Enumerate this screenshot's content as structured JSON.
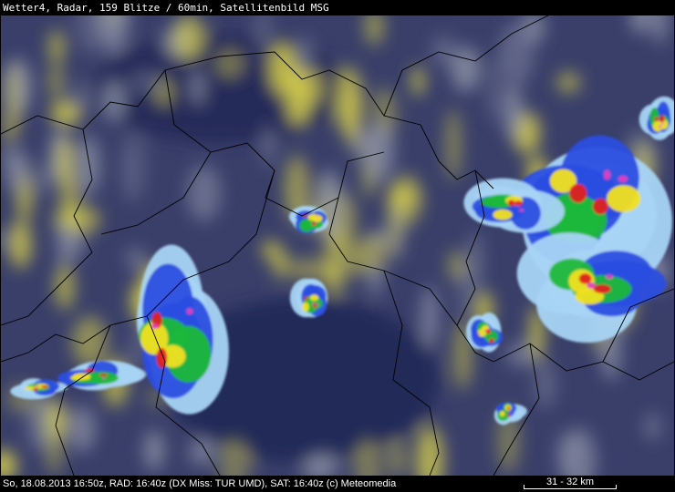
{
  "header": {
    "title": "Wetter4, Radar, 159 Blitze / 60min, Satellitenbild MSG"
  },
  "footer": {
    "info": "So, 18.08.2013 16:50z, RAD: 16:40z (DX Miss: TUR UMD), SAT: 16:40z (c) Meteomedia",
    "scale": "31 - 32 km"
  },
  "colors": {
    "background_clouds_dark": "#242a58",
    "clouds_bright": "#e0d84a",
    "radar_light": "#a8d4f4",
    "radar_blue": "#2c4ee0",
    "radar_green": "#1fb83a",
    "radar_yellow": "#f0e020",
    "radar_red": "#e02020",
    "radar_magenta": "#e040c0",
    "borders": "#000000"
  }
}
